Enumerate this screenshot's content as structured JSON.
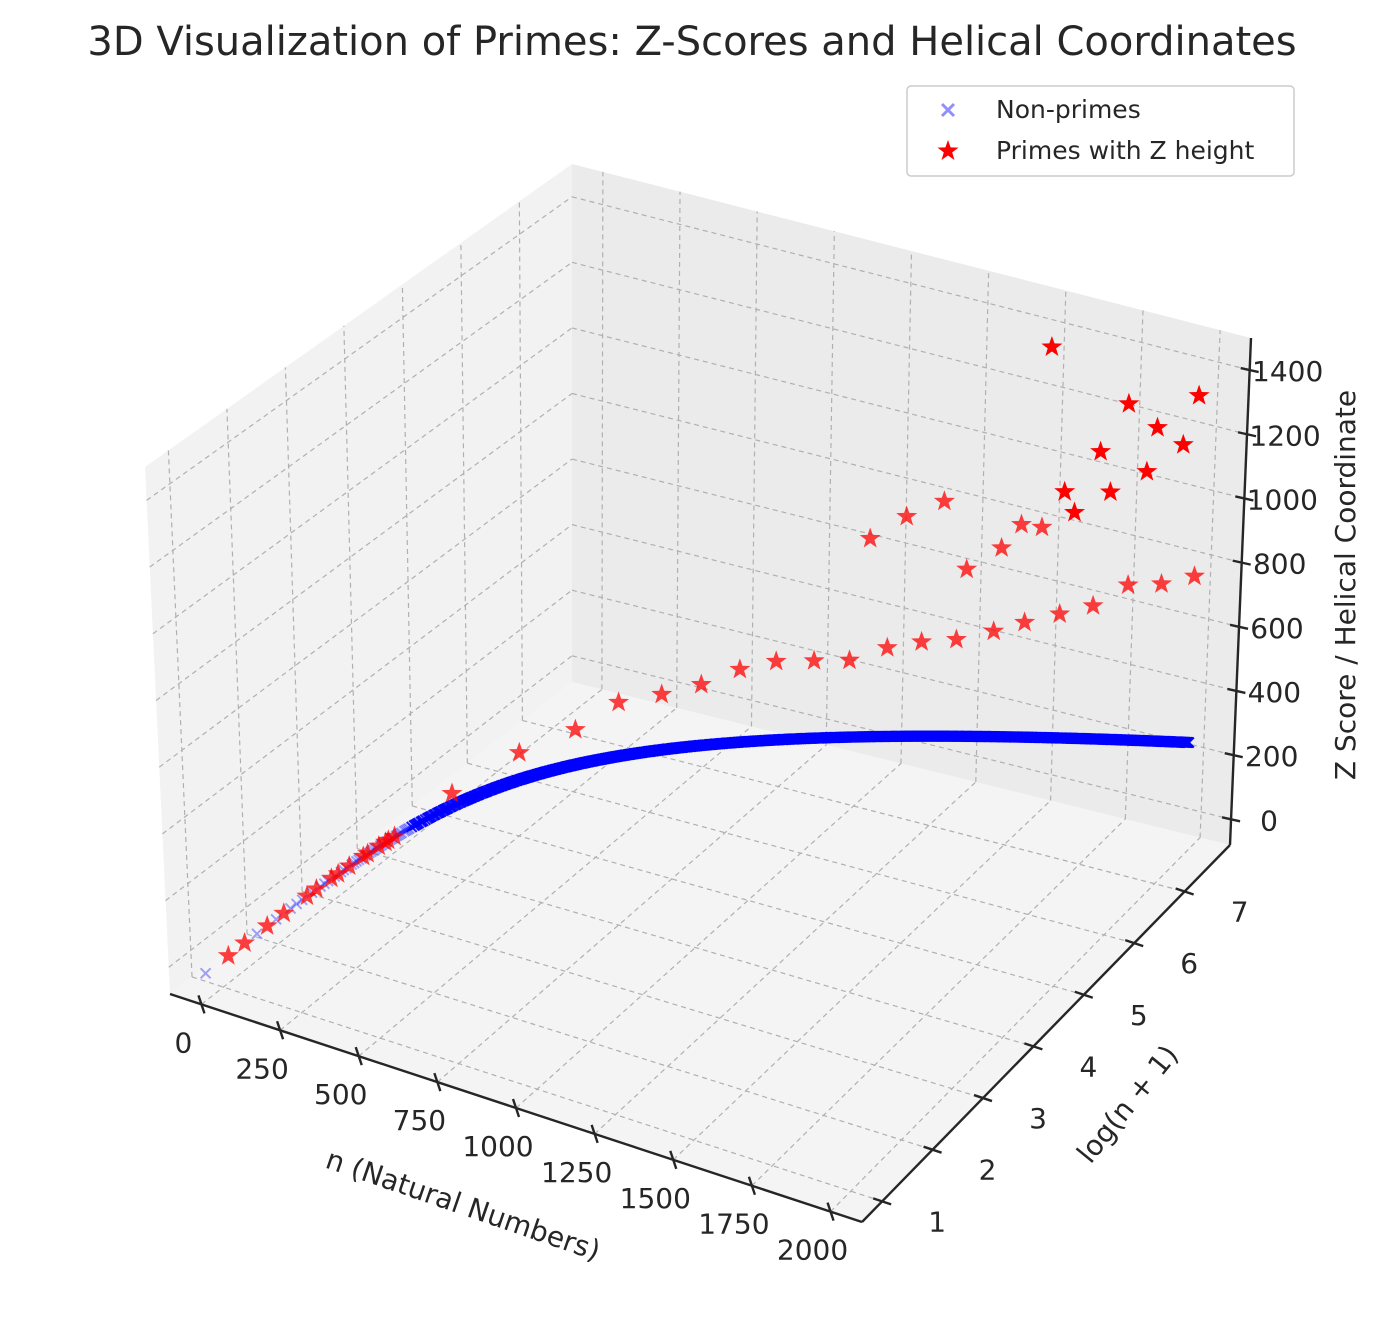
{
  "chart_data": {
    "type": "scatter",
    "title": "3D Visualization of Primes: Z-Scores and Helical Coordinates",
    "xlabel": "n (Natural Numbers)",
    "ylabel": "log(n + 1)",
    "zlabel": "Z Score / Helical Coordinate",
    "xlim": [
      -100,
      2100
    ],
    "ylim": [
      0.6,
      7.9
    ],
    "zlim": [
      -80,
      1500
    ],
    "x_ticks": [
      "0",
      "250",
      "500",
      "750",
      "1000",
      "1250",
      "1500",
      "1750",
      "2000"
    ],
    "y_ticks": [
      "1",
      "2",
      "3",
      "4",
      "5",
      "6",
      "7"
    ],
    "z_ticks": [
      "0",
      "200",
      "400",
      "600",
      "800",
      "1000",
      "1200",
      "1400"
    ],
    "legend": {
      "position": "upper right",
      "entries": [
        {
          "label": "Non-primes",
          "marker": "x",
          "color": "#6b6bff"
        },
        {
          "label": "Primes with Z height",
          "marker": "star",
          "color": "#ff0000"
        }
      ]
    },
    "series": [
      {
        "name": "Non-primes",
        "marker": "x",
        "color": "#0000ff",
        "curve": "z = n / log(n + 1) for composite n",
        "n_range": [
          1,
          2000
        ],
        "sample": [
          [
            1,
            1
          ],
          [
            250,
            45
          ],
          [
            500,
            80
          ],
          [
            750,
            113
          ],
          [
            1000,
            145
          ],
          [
            1250,
            175
          ],
          [
            1500,
            205
          ],
          [
            1750,
            234
          ],
          [
            2000,
            263
          ]
        ]
      },
      {
        "name": "Primes with Z height",
        "marker": "star",
        "color": "#ff0000",
        "points": [
          [
            2,
            1.1,
            2
          ],
          [
            3,
            1.39,
            3
          ],
          [
            5,
            1.79,
            3
          ],
          [
            7,
            2.08,
            4
          ],
          [
            11,
            2.48,
            5
          ],
          [
            13,
            2.64,
            6
          ],
          [
            17,
            2.89,
            7
          ],
          [
            19,
            3.0,
            7
          ],
          [
            23,
            3.18,
            8
          ],
          [
            29,
            3.4,
            10
          ],
          [
            31,
            3.47,
            10
          ],
          [
            37,
            3.64,
            12
          ],
          [
            41,
            3.74,
            12
          ],
          [
            43,
            3.78,
            13
          ],
          [
            47,
            3.87,
            14
          ],
          [
            101,
            4.62,
            60
          ],
          [
            200,
            5.3,
            120
          ],
          [
            307,
            5.73,
            160
          ],
          [
            401,
            6.0,
            230
          ],
          [
            503,
            6.22,
            250
          ],
          [
            601,
            6.4,
            280
          ],
          [
            701,
            6.55,
            330
          ],
          [
            797,
            6.68,
            360
          ],
          [
            900,
            6.8,
            370
          ],
          [
            997,
            6.91,
            380
          ],
          [
            1103,
            7.01,
            430
          ],
          [
            1201,
            7.09,
            460
          ],
          [
            1301,
            7.17,
            480
          ],
          [
            1409,
            7.25,
            520
          ],
          [
            1499,
            7.31,
            560
          ],
          [
            1601,
            7.38,
            600
          ],
          [
            1699,
            7.44,
            640
          ],
          [
            1801,
            7.5,
            720
          ],
          [
            1901,
            7.55,
            740
          ],
          [
            1999,
            7.6,
            780
          ],
          [
            1051,
            6.96,
            760
          ],
          [
            1153,
            7.05,
            840
          ],
          [
            1259,
            7.14,
            900
          ],
          [
            1327,
            7.19,
            700
          ],
          [
            1427,
            7.26,
            780
          ],
          [
            1543,
            7.34,
            860
          ],
          [
            1637,
            7.4,
            920
          ],
          [
            1741,
            7.46,
            1000
          ],
          [
            1847,
            7.52,
            1080
          ],
          [
            1951,
            7.58,
            1180
          ],
          [
            1559,
            7.35,
            1420
          ],
          [
            1787,
            7.49,
            1280
          ],
          [
            1993,
            7.6,
            1340
          ],
          [
            1873,
            7.54,
            1220
          ],
          [
            1709,
            7.44,
            1120
          ],
          [
            1607,
            7.38,
            980
          ],
          [
            1483,
            7.3,
            860
          ]
        ]
      }
    ]
  }
}
